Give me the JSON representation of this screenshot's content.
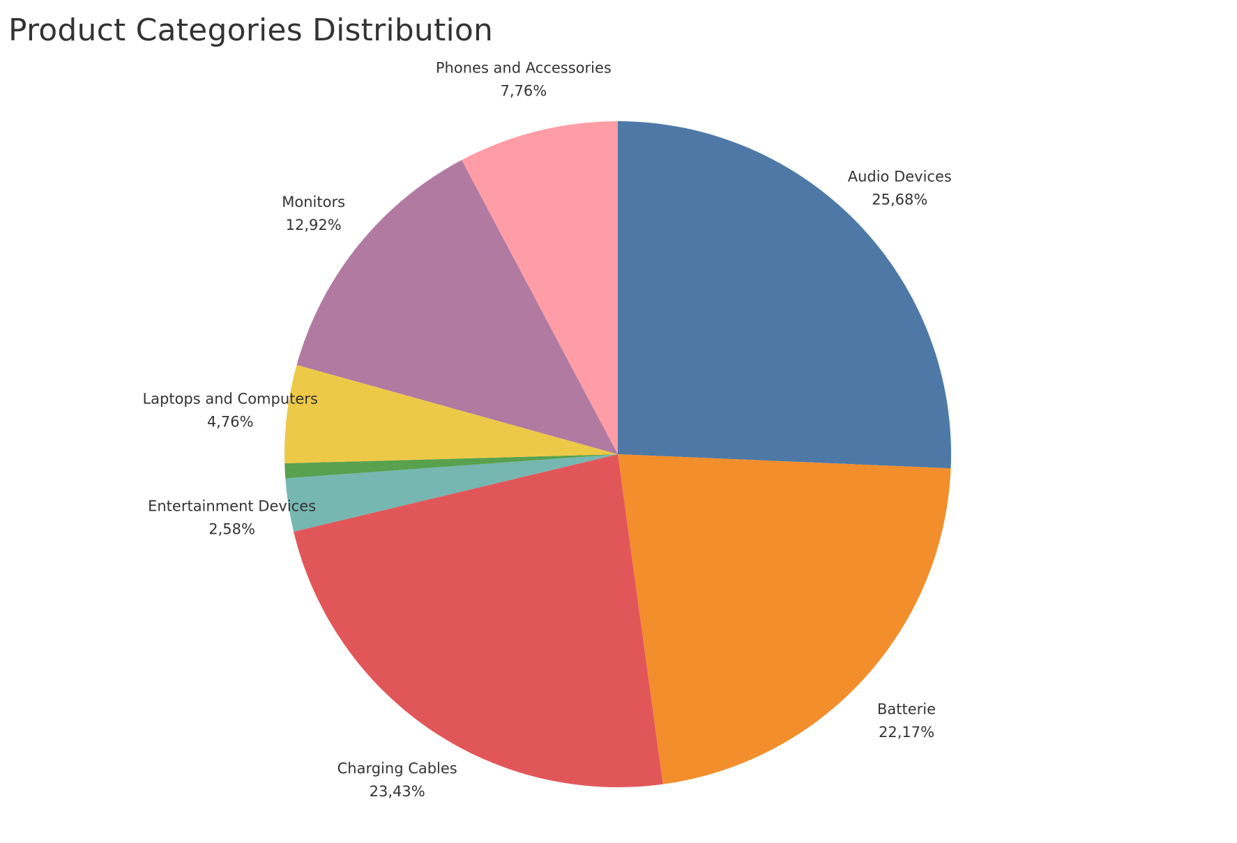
{
  "chart_data": {
    "type": "pie",
    "title": "Product Categories Distribution",
    "start_angle": "12 o'clock",
    "direction": "clockwise",
    "slices": [
      {
        "label": "Audio Devices",
        "value": 25.68,
        "value_label": "25,68%",
        "color": "#4e79a7"
      },
      {
        "label": "Batterie",
        "value": 22.17,
        "value_label": "22,17%",
        "color": "#f28e2b"
      },
      {
        "label": "Charging Cables",
        "value": 23.43,
        "value_label": "23,43%",
        "color": "#e15759"
      },
      {
        "label": "Entertainment Devices",
        "value": 2.58,
        "value_label": "2,58%",
        "color": "#76b7b2"
      },
      {
        "label": "",
        "value": 0.72,
        "value_label": "",
        "color": "#59a14f"
      },
      {
        "label": "Laptops and Computers",
        "value": 4.76,
        "value_label": "4,76%",
        "color": "#edc948"
      },
      {
        "label": "Monitors",
        "value": 12.92,
        "value_label": "12,92%",
        "color": "#b07aa1"
      },
      {
        "label": "Phones and Accessories",
        "value": 7.76,
        "value_label": "7,76%",
        "color": "#ff9da7"
      }
    ]
  }
}
